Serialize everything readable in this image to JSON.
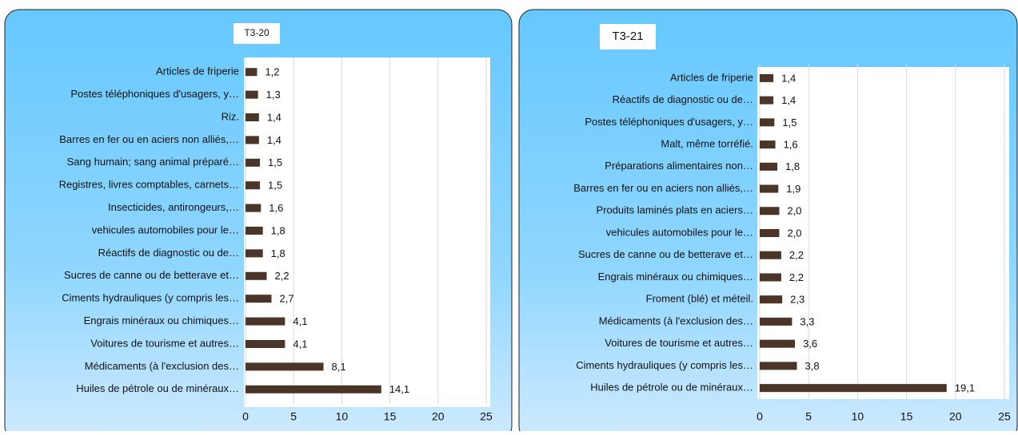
{
  "chart_data": [
    {
      "type": "bar",
      "title": "T3-20",
      "categories": [
        "Articles de friperie",
        "Postes téléphoniques d'usagers, y…",
        "Riz.",
        "Barres en fer ou en aciers non alliés,…",
        "Sang humain; sang animal préparé…",
        "Registres, livres comptables, carnets…",
        "Insecticides, antirongeurs,…",
        "vehicules automobiles pour le…",
        "Réactifs de diagnostic ou de…",
        "Sucres de canne ou de betterave et…",
        "Ciments hydrauliques (y compris les…",
        "Engrais minéraux ou chimiques…",
        "Voitures de tourisme et autres…",
        "Médicaments (à l'exclusion des…",
        "Huiles de pétrole ou de minéraux…"
      ],
      "values": [
        1.2,
        1.3,
        1.4,
        1.4,
        1.5,
        1.5,
        1.6,
        1.8,
        1.8,
        2.2,
        2.7,
        4.1,
        4.1,
        8.1,
        14.1
      ],
      "value_labels": [
        "1,2",
        "1,3",
        "1,4",
        "1,4",
        "1,5",
        "1,5",
        "1,6",
        "1,8",
        "1,8",
        "2,2",
        "2,7",
        "4,1",
        "4,1",
        "8,1",
        "14,1"
      ],
      "color": "#4a3528",
      "xlim": [
        0,
        25
      ],
      "xticks": [
        0,
        5,
        10,
        15,
        20,
        25
      ],
      "grid": true
    },
    {
      "type": "bar",
      "title": "T3-21",
      "categories": [
        "Articles de friperie",
        "Réactifs de diagnostic ou de…",
        "Postes téléphoniques d'usagers, y…",
        "Malt, même torréfié.",
        "Préparations alimentaires non…",
        "Barres en fer ou en aciers non alliés,…",
        "Produits laminés plats en aciers…",
        "vehicules automobiles pour le…",
        "Sucres de canne ou de betterave et…",
        "Engrais minéraux ou chimiques…",
        "Froment (blé) et méteil.",
        "Médicaments (à l'exclusion des…",
        "Voitures de tourisme et autres…",
        "Ciments hydrauliques (y compris les…",
        "Huiles de pétrole ou de minéraux…"
      ],
      "values": [
        1.4,
        1.4,
        1.5,
        1.6,
        1.8,
        1.9,
        2.0,
        2.0,
        2.2,
        2.2,
        2.3,
        3.3,
        3.6,
        3.8,
        19.1
      ],
      "value_labels": [
        "1,4",
        "1,4",
        "1,5",
        "1,6",
        "1,8",
        "1,9",
        "2,0",
        "2,0",
        "2,2",
        "2,2",
        "2,3",
        "3,3",
        "3,6",
        "3,8",
        "19,1"
      ],
      "color": "#4a3528",
      "xlim": [
        0,
        25
      ],
      "xticks": [
        0,
        5,
        10,
        15,
        20,
        25
      ],
      "grid": true
    }
  ]
}
